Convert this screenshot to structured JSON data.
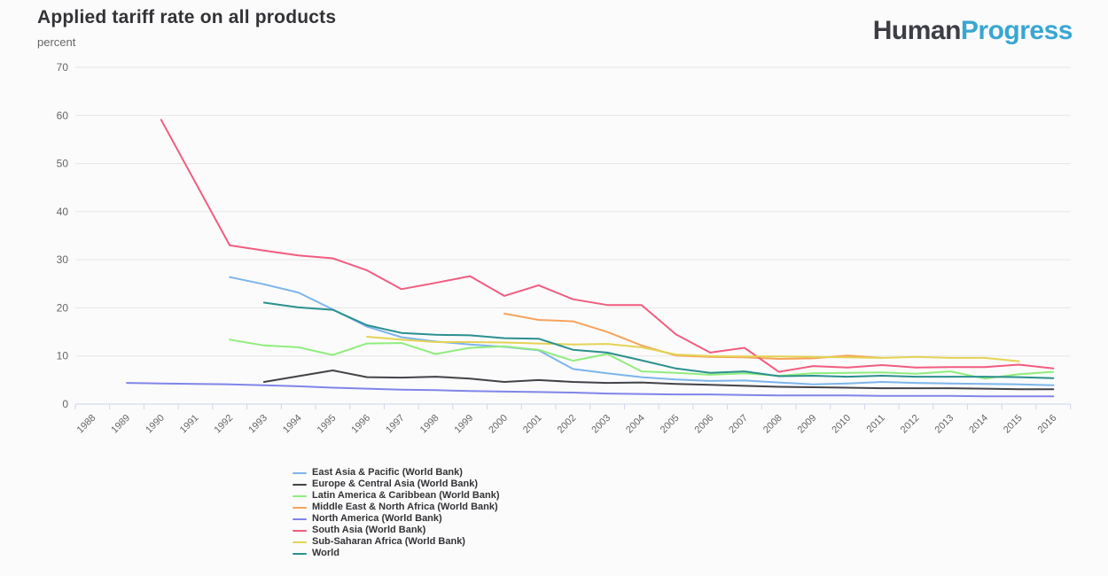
{
  "header": {
    "title": "Applied tariff rate on all products",
    "subtitle": "percent"
  },
  "logo": {
    "text_primary": "Human",
    "text_secondary": "Progress",
    "color_primary": "#3d3d46",
    "color_secondary": "#38a6d2"
  },
  "chart_data": {
    "type": "line",
    "title": "Applied tariff rate on all products",
    "ylabel": "percent",
    "xlabel": "",
    "ylim": [
      0,
      70
    ],
    "ytick_interval": 10,
    "grid": true,
    "legend_position": "bottom",
    "axis_line_color": "#ccd6eb",
    "grid_color": "#e6e6e6",
    "axis_label_color": "#666666",
    "categories": [
      "1988",
      "1989",
      "1990",
      "1991",
      "1992",
      "1993",
      "1994",
      "1995",
      "1996",
      "1997",
      "1998",
      "1999",
      "2000",
      "2001",
      "2002",
      "2003",
      "2004",
      "2005",
      "2006",
      "2007",
      "2008",
      "2009",
      "2010",
      "2011",
      "2012",
      "2013",
      "2014",
      "2015",
      "2016"
    ],
    "series": [
      {
        "name": "East Asia & Pacific (World Bank)",
        "color": "#7cb5ec",
        "values": [
          null,
          null,
          null,
          null,
          26.4,
          24.9,
          23.2,
          19.7,
          16.1,
          13.9,
          13.0,
          12.4,
          11.9,
          11.2,
          7.3,
          6.4,
          5.6,
          5.1,
          4.8,
          4.9,
          4.5,
          4.1,
          4.3,
          4.6,
          4.4,
          4.3,
          4.2,
          4.1,
          3.9
        ]
      },
      {
        "name": "Europe & Central Asia (World Bank)",
        "color": "#434348",
        "values": [
          null,
          null,
          null,
          null,
          null,
          4.6,
          5.8,
          7.0,
          5.6,
          5.5,
          5.7,
          5.3,
          4.6,
          5.0,
          4.6,
          4.4,
          4.5,
          4.2,
          4.0,
          3.8,
          3.6,
          3.5,
          3.4,
          3.3,
          3.3,
          3.3,
          3.2,
          3.1,
          3.1
        ]
      },
      {
        "name": "Latin America & Caribbean (World Bank)",
        "color": "#90ed7d",
        "values": [
          null,
          null,
          null,
          null,
          13.4,
          12.2,
          11.8,
          10.2,
          12.6,
          12.7,
          10.4,
          11.7,
          12.0,
          11.3,
          9.0,
          10.4,
          6.8,
          6.5,
          6.1,
          6.4,
          5.9,
          6.4,
          6.5,
          6.6,
          6.3,
          6.8,
          5.3,
          6.2,
          6.7
        ]
      },
      {
        "name": "Middle East & North Africa (World Bank)",
        "color": "#f7a35c",
        "values": [
          null,
          null,
          null,
          null,
          null,
          null,
          null,
          null,
          null,
          null,
          null,
          null,
          18.8,
          17.5,
          17.2,
          15.0,
          12.2,
          10.1,
          9.8,
          9.7,
          9.4,
          9.5,
          10.1,
          9.6,
          null,
          null,
          null,
          null,
          null
        ]
      },
      {
        "name": "North America (World Bank)",
        "color": "#8085e9",
        "values": [
          null,
          4.4,
          4.3,
          4.2,
          4.1,
          3.9,
          3.7,
          3.4,
          3.2,
          3.0,
          2.9,
          2.7,
          2.6,
          2.5,
          2.4,
          2.2,
          2.1,
          2.0,
          2.0,
          1.9,
          1.8,
          1.8,
          1.8,
          1.7,
          1.7,
          1.7,
          1.6,
          1.6,
          1.6
        ]
      },
      {
        "name": "South Asia (World Bank)",
        "color": "#f15c80",
        "values": [
          null,
          null,
          59.1,
          null,
          33.0,
          31.9,
          30.9,
          30.3,
          27.8,
          23.9,
          25.2,
          26.6,
          22.5,
          24.7,
          21.8,
          20.6,
          20.6,
          14.5,
          10.7,
          11.7,
          6.7,
          7.9,
          7.6,
          8.1,
          7.6,
          7.7,
          7.7,
          8.2,
          7.4
        ]
      },
      {
        "name": "Sub-Saharan Africa (World Bank)",
        "color": "#e4d354",
        "values": [
          null,
          null,
          null,
          null,
          null,
          null,
          null,
          null,
          14.0,
          13.4,
          12.9,
          12.9,
          12.8,
          12.6,
          12.4,
          12.5,
          11.8,
          10.3,
          10.0,
          9.9,
          9.9,
          9.8,
          9.7,
          9.6,
          9.8,
          9.6,
          9.6,
          8.9,
          null
        ]
      },
      {
        "name": "World",
        "color": "#2b908f",
        "values": [
          null,
          null,
          null,
          null,
          null,
          21.1,
          20.1,
          19.6,
          16.4,
          14.8,
          14.4,
          14.3,
          13.7,
          13.6,
          11.3,
          10.7,
          9.1,
          7.4,
          6.5,
          6.8,
          5.8,
          5.9,
          5.7,
          5.9,
          5.7,
          5.7,
          5.7,
          5.6,
          5.4
        ]
      }
    ]
  }
}
